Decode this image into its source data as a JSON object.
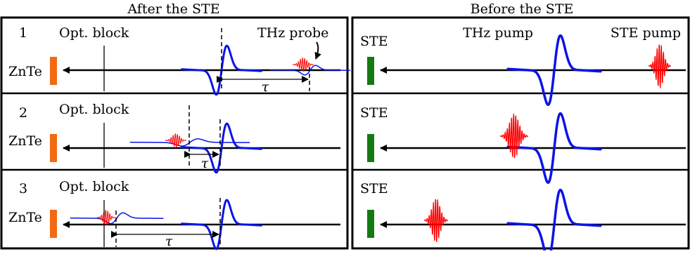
{
  "titles": {
    "left": "After the STE",
    "right": "Before the STE"
  },
  "labels": {
    "opt_block": "Opt. block",
    "znte": "ZnTe",
    "ste": "STE",
    "thz_probe": "THz probe",
    "thz_pump": "THz pump",
    "ste_pump": "STE pump",
    "tau": "τ"
  },
  "left_rows": [
    {
      "number": "1"
    },
    {
      "number": "2"
    },
    {
      "number": "3"
    }
  ],
  "colors": {
    "znte_bar": "#f26a12",
    "ste_bar": "#137a13",
    "thz_wave": "#0a14e6",
    "optical_pulse": "#ff0000",
    "frame": "#000000"
  }
}
